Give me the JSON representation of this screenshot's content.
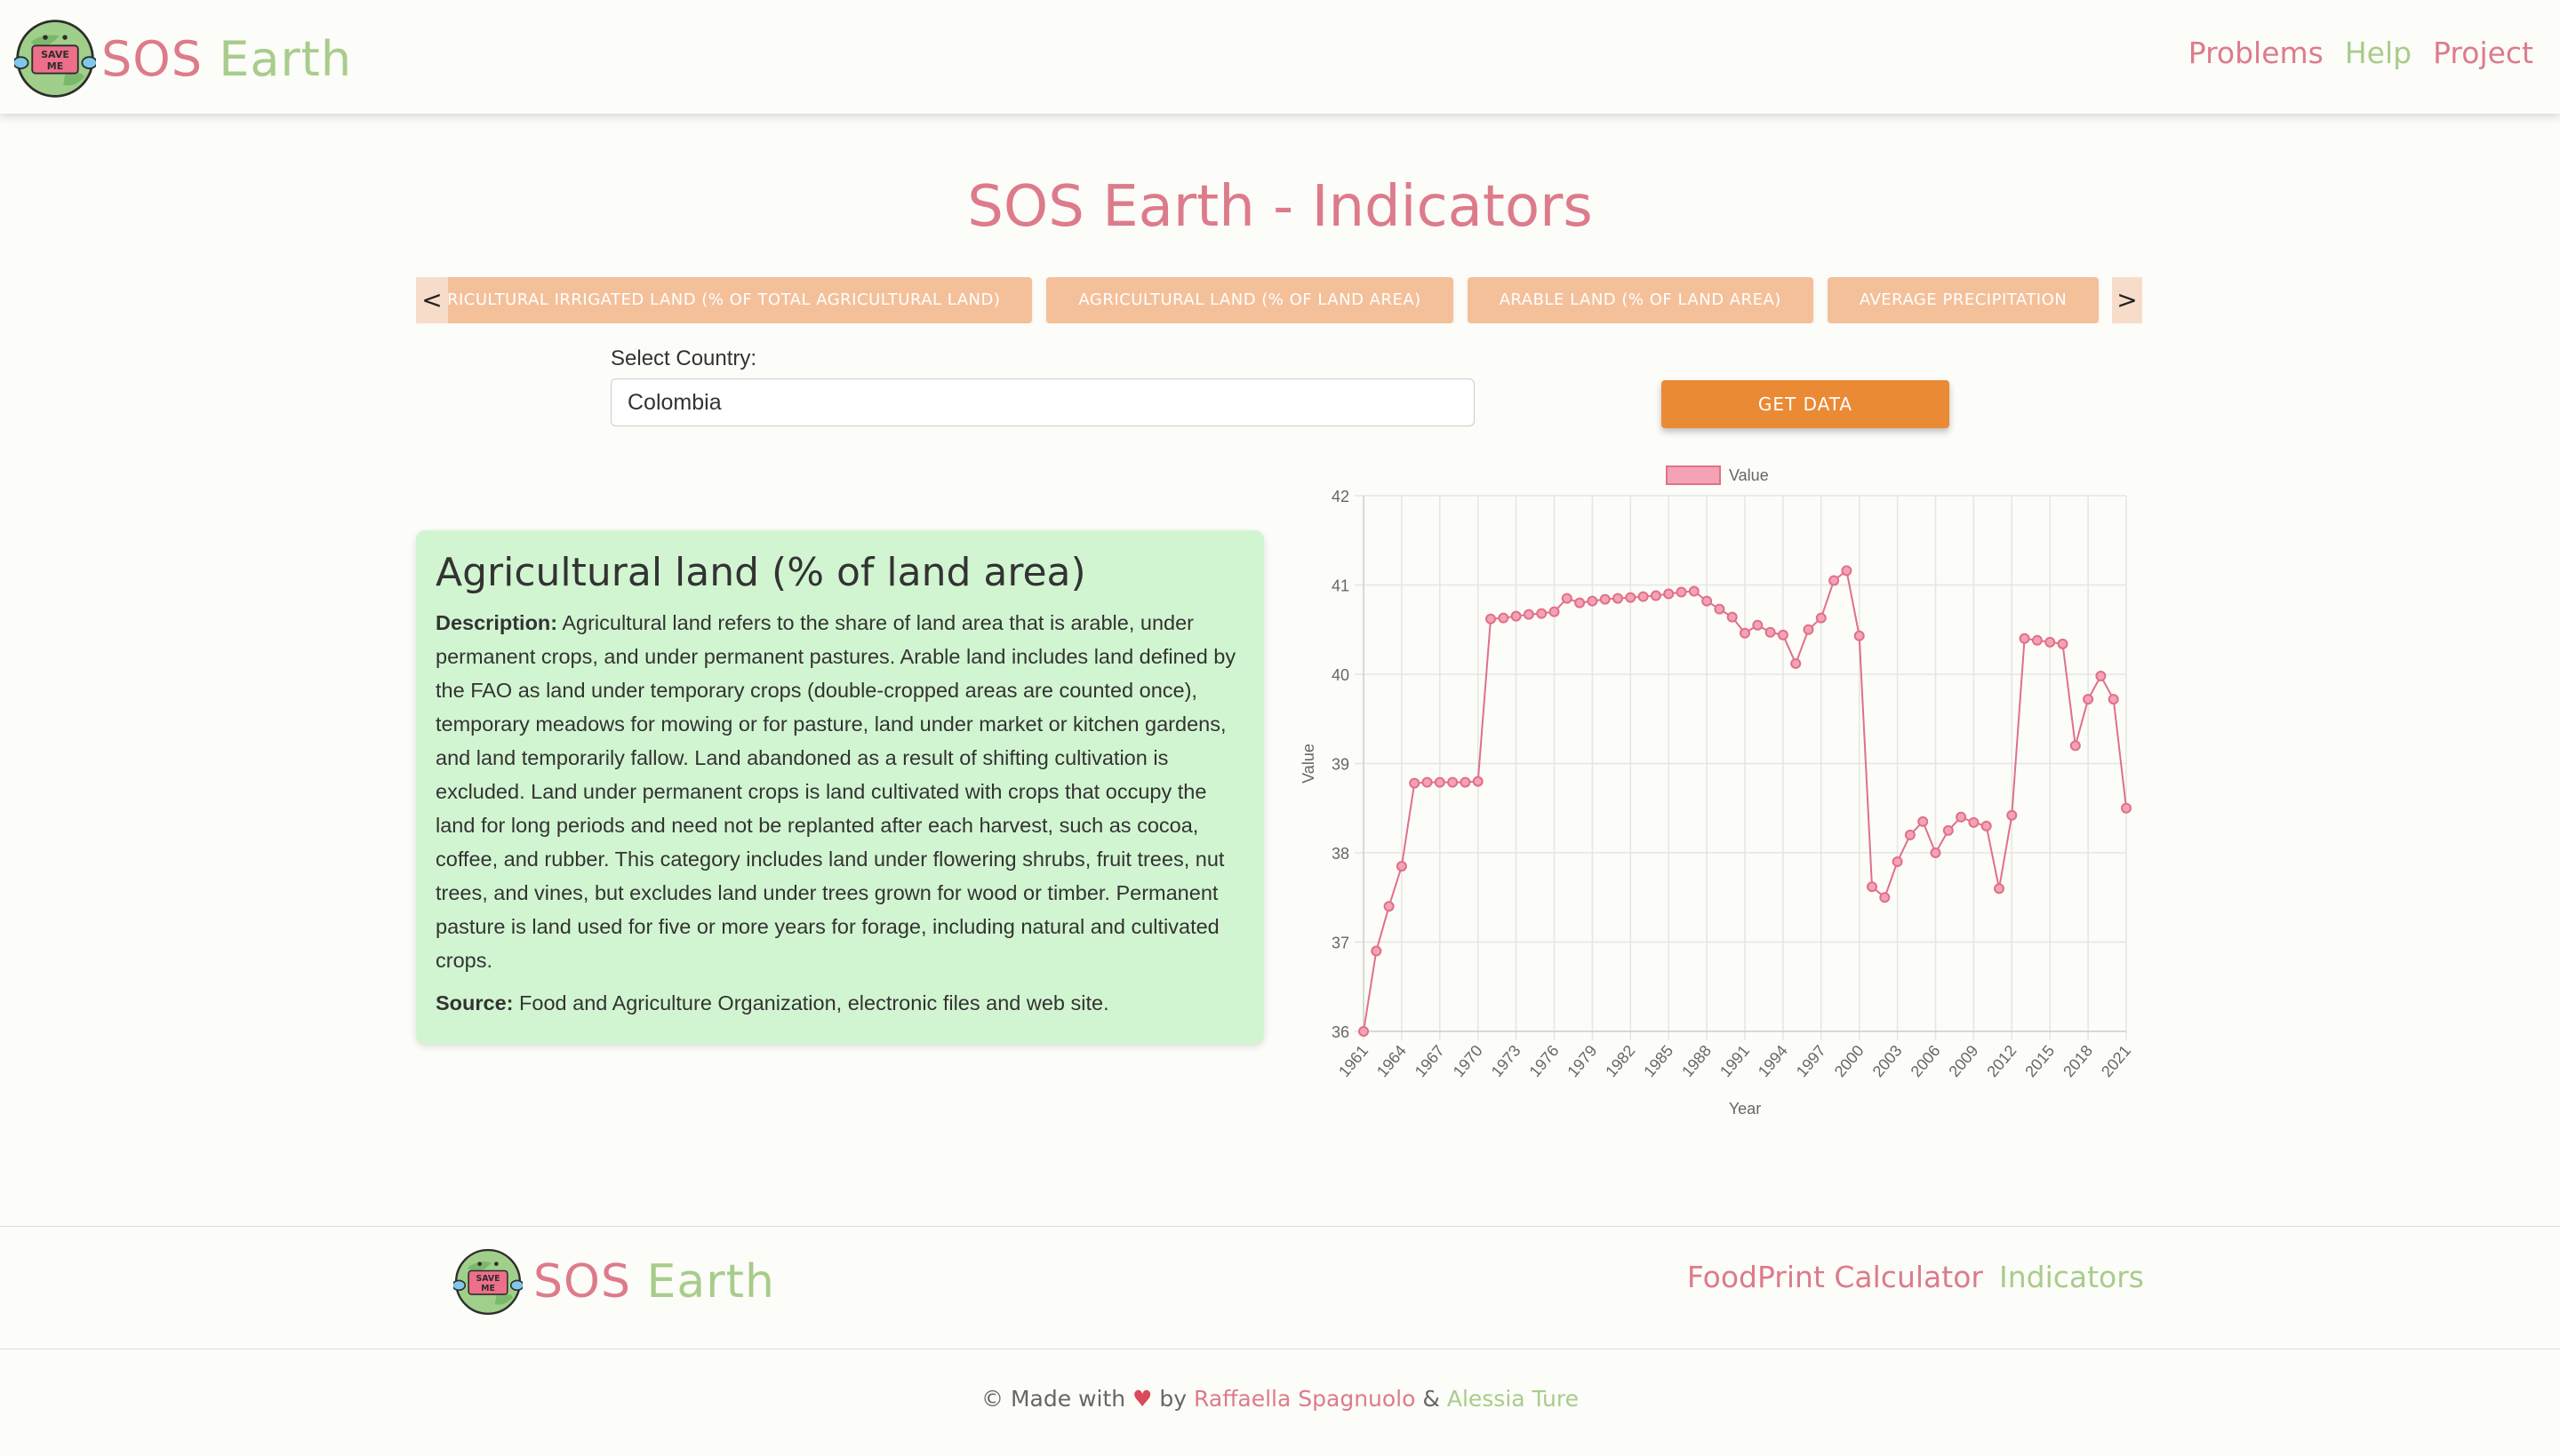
{
  "brand": {
    "name_part1": "SOS",
    "name_part2": "Earth",
    "logo_text": "SAVE ME"
  },
  "nav": {
    "problems": "Problems",
    "help": "Help",
    "project": "Project"
  },
  "page_title": "SOS Earth - Indicators",
  "indicators_carousel": {
    "prev": "<",
    "next": ">",
    "items": [
      "AGRICULTURAL IRRIGATED LAND (% OF TOTAL AGRICULTURAL LAND)",
      "AGRICULTURAL LAND (% OF LAND AREA)",
      "ARABLE LAND (% OF LAND AREA)",
      "AVERAGE PRECIPITATION"
    ]
  },
  "country_select": {
    "label": "Select Country:",
    "value": "Colombia"
  },
  "get_data_button": "GET DATA",
  "indicator_info": {
    "title": "Agricultural land (% of land area)",
    "description_label": "Description:",
    "description": "Agricultural land refers to the share of land area that is arable, under permanent crops, and under permanent pastures. Arable land includes land defined by the FAO as land under temporary crops (double-cropped areas are counted once), temporary meadows for mowing or for pasture, land under market or kitchen gardens, and land temporarily fallow. Land abandoned as a result of shifting cultivation is excluded. Land under permanent crops is land cultivated with crops that occupy the land for long periods and need not be replanted after each harvest, such as cocoa, coffee, and rubber. This category includes land under flowering shrubs, fruit trees, nut trees, and vines, but excludes land under trees grown for wood or timber. Permanent pasture is land used for five or more years for forage, including natural and cultivated crops.",
    "source_label": "Source:",
    "source": "Food and Agriculture Organization, electronic files and web site."
  },
  "chart_data": {
    "type": "line",
    "xlabel": "Year",
    "ylabel": "Value",
    "ylim": [
      36,
      42
    ],
    "yticks": [
      36,
      37,
      38,
      39,
      40,
      41,
      42
    ],
    "grid": true,
    "legend": "top-center",
    "line_color": "#e0708a",
    "point_fill": "#f4a3b5",
    "x_tick_labels": [
      "1961",
      "1964",
      "1967",
      "1970",
      "1973",
      "1976",
      "1979",
      "1982",
      "1985",
      "1988",
      "1991",
      "1994",
      "1997",
      "2000",
      "2003",
      "2006",
      "2009",
      "2012",
      "2015",
      "2018",
      "2021"
    ],
    "series": [
      {
        "name": "Value",
        "x": [
          1961,
          1962,
          1963,
          1964,
          1965,
          1966,
          1967,
          1968,
          1969,
          1970,
          1971,
          1972,
          1973,
          1974,
          1975,
          1976,
          1977,
          1978,
          1979,
          1980,
          1981,
          1982,
          1983,
          1984,
          1985,
          1986,
          1987,
          1988,
          1989,
          1990,
          1991,
          1992,
          1993,
          1994,
          1995,
          1996,
          1997,
          1998,
          1999,
          2000,
          2001,
          2002,
          2003,
          2004,
          2005,
          2006,
          2007,
          2008,
          2009,
          2010,
          2011,
          2012,
          2013,
          2014,
          2015,
          2016,
          2017,
          2018,
          2019,
          2020,
          2021
        ],
        "values": [
          36.0,
          36.9,
          37.4,
          37.85,
          38.78,
          38.79,
          38.79,
          38.79,
          38.79,
          38.8,
          40.62,
          40.63,
          40.65,
          40.67,
          40.68,
          40.7,
          40.85,
          40.8,
          40.82,
          40.84,
          40.85,
          40.86,
          40.87,
          40.88,
          40.9,
          40.92,
          40.93,
          40.82,
          40.73,
          40.64,
          40.46,
          40.55,
          40.47,
          40.44,
          40.12,
          40.5,
          40.63,
          41.05,
          41.16,
          40.43,
          37.62,
          37.5,
          37.9,
          38.2,
          38.35,
          38.0,
          38.25,
          38.4,
          38.34,
          38.3,
          37.6,
          38.42,
          40.4,
          40.38,
          40.36,
          40.34,
          39.2,
          39.72,
          39.98,
          39.72,
          38.5
        ]
      }
    ]
  },
  "footer": {
    "brand_part1": "SOS",
    "brand_part2": "Earth",
    "logo_text": "SAVE ME",
    "links": {
      "foodprint": "FoodPrint Calculator",
      "indicators": "Indicators"
    },
    "credits": {
      "prefix": "© Made with",
      "heart": "♥",
      "by": "by",
      "author1": "Raffaella Spagnuolo",
      "amp": "&",
      "author2": "Alessia Ture"
    }
  }
}
